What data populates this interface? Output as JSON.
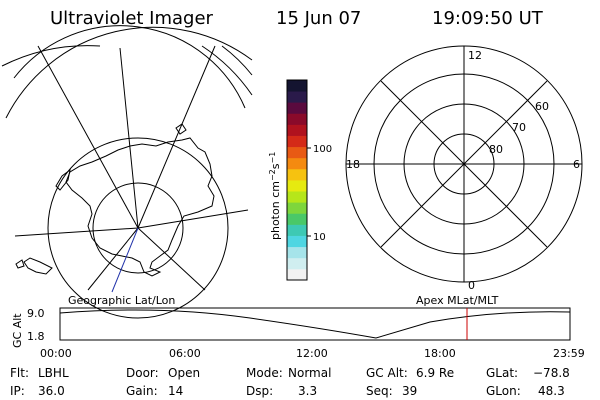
{
  "header": {
    "title": "Ultraviolet Imager",
    "date": "15 Jun 07",
    "time": "19:09:50 UT"
  },
  "colorbar": {
    "unit_label": "photon cm",
    "unit_exp1": "−2",
    "unit_mid": "s",
    "unit_exp2": "−1",
    "tick_100": "100",
    "tick_10": "10",
    "colors": [
      "#f2f2f2",
      "#d0eef0",
      "#a6e4ea",
      "#4fd6e2",
      "#3ec9b4",
      "#4ac868",
      "#7ed63c",
      "#b6e61a",
      "#e6ea10",
      "#f6c210",
      "#f48a10",
      "#e85a14",
      "#d42a18",
      "#b0121e",
      "#8a0a2a",
      "#5a0a3e",
      "#2a1a4a",
      "#141430"
    ]
  },
  "geo_panel": {
    "label": "Geographic Lat/Lon"
  },
  "polar_panel": {
    "label": "Apex MLat/MLT",
    "mlt_12": "12",
    "mlt_18": "18",
    "mlt_6": "6",
    "mlt_0": "0",
    "lat_60": "60",
    "lat_70": "70",
    "lat_80": "80"
  },
  "altitude_plot": {
    "ylabel": "GC Alt",
    "y_max": "9.0",
    "y_min": "1.8",
    "x_ticks": [
      "00:00",
      "06:00",
      "12:00",
      "18:00",
      "23:59"
    ],
    "current_marker_color": "#cc0000"
  },
  "info": {
    "flt_label": "Flt:",
    "flt": "LBHL",
    "ip_label": "IP:",
    "ip": "36.0",
    "door_label": "Door:",
    "door": "Open",
    "gain_label": "Gain:",
    "gain": "14",
    "mode_label": "Mode:",
    "mode": "Normal",
    "dsp_label": "Dsp:",
    "dsp": "3.3",
    "gcalt_label": "GC Alt:",
    "gcalt": "6.9 Re",
    "seq_label": "Seq:",
    "seq": "39",
    "glat_label": "GLat:",
    "glat": "−78.8",
    "glon_label": "GLon:",
    "glon": "48.3"
  }
}
